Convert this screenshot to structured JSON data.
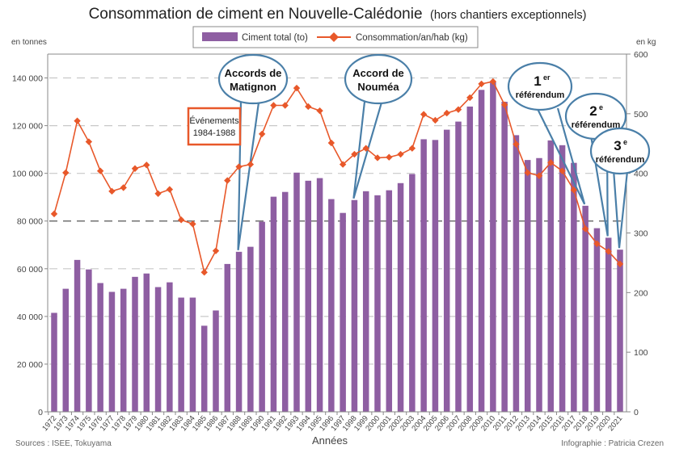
{
  "chart_data": {
    "type": "bar+line",
    "title": "Consommation de ciment en Nouvelle-Calédonie",
    "subtitle": "(hors chantiers exceptionnels)",
    "xlabel": "Années",
    "ylabel_left": "en tonnes",
    "ylabel_right": "en kg",
    "ylim_left": [
      0,
      150000
    ],
    "ylim_right": [
      0,
      600
    ],
    "yticks_left": [
      0,
      20000,
      40000,
      60000,
      80000,
      100000,
      120000,
      140000
    ],
    "yticks_left_labels": [
      "0",
      "20 000",
      "40 000",
      "60 000",
      "80 000",
      "100 000",
      "120 000",
      "140 000"
    ],
    "yticks_right": [
      0,
      100,
      200,
      300,
      400,
      500,
      600
    ],
    "yticks_right_labels": [
      "0",
      "100",
      "200",
      "300",
      "400",
      "500",
      "600"
    ],
    "grid": true,
    "legend_position": "top-center",
    "categories": [
      "1972",
      "1973",
      "1974",
      "1975",
      "1976",
      "1977",
      "1978",
      "1979",
      "1980",
      "1981",
      "1982",
      "1983",
      "1984",
      "1985",
      "1986",
      "1987",
      "1988",
      "1989",
      "1990",
      "1991",
      "1992",
      "1993",
      "1994",
      "1995",
      "1996",
      "1997",
      "1998",
      "1999",
      "2000",
      "2001",
      "2002",
      "2003",
      "2004",
      "2005",
      "2006",
      "2007",
      "2008",
      "2009",
      "2010",
      "2011",
      "2012",
      "2013",
      "2014",
      "2015",
      "2016",
      "2017",
      "2018",
      "2019",
      "2020",
      "2021"
    ],
    "series": [
      {
        "name": "Ciment total (to)",
        "type": "bar",
        "axis": "left",
        "color": "#8e5ea2",
        "values": [
          41500,
          51600,
          63700,
          59700,
          54000,
          50300,
          51600,
          56600,
          58000,
          52300,
          54300,
          47900,
          47900,
          36100,
          42500,
          62000,
          67100,
          69200,
          79700,
          90200,
          92200,
          100300,
          96900,
          98000,
          89200,
          83400,
          88800,
          92500,
          90800,
          92900,
          95900,
          99700,
          114300,
          114000,
          118300,
          121700,
          128000,
          135000,
          138600,
          130000,
          116000,
          105600,
          106400,
          113800,
          111800,
          104400,
          86400,
          77000,
          73000,
          68000
        ]
      },
      {
        "name": "Consommation/an/hab (kg)",
        "type": "line",
        "axis": "right",
        "color": "#e8582a",
        "marker": "diamond",
        "values": [
          332,
          401,
          488,
          453,
          404,
          370,
          376,
          408,
          414,
          366,
          373,
          322,
          315,
          234,
          270,
          388,
          411,
          415,
          466,
          514,
          514,
          543,
          512,
          505,
          451,
          415,
          432,
          442,
          426,
          427,
          432,
          442,
          499,
          489,
          501,
          507,
          527,
          550,
          554,
          515,
          449,
          401,
          396,
          418,
          404,
          372,
          307,
          282,
          269,
          248
        ]
      }
    ],
    "annotations": [
      {
        "id": "matignon",
        "lines": [
          "Accords de",
          "Matignon"
        ],
        "year": "1988"
      },
      {
        "id": "noumea",
        "lines": [
          "Accord de",
          "Nouméa"
        ],
        "year": "1998"
      },
      {
        "id": "ref1",
        "big": "1",
        "sup": "er",
        "text": "référendum",
        "year": "2018"
      },
      {
        "id": "ref2",
        "big": "2",
        "sup": "e",
        "text": "référendum",
        "year": "2020"
      },
      {
        "id": "ref3",
        "big": "3",
        "sup": "e",
        "text": "référendum",
        "year": "2021"
      }
    ],
    "event_box": {
      "lines": [
        "Événements",
        "1984-1988"
      ]
    }
  },
  "colors": {
    "bar": "#8e5ea2",
    "line": "#e8582a",
    "callout": "#4a7fa8",
    "event_box": "#e8582a",
    "grid": "#c8c8c8",
    "grid_dark": "#555555"
  },
  "footer": {
    "sources": "Sources : ISEE, Tokuyama",
    "credit": "Infographie : Patricia Crezen"
  }
}
